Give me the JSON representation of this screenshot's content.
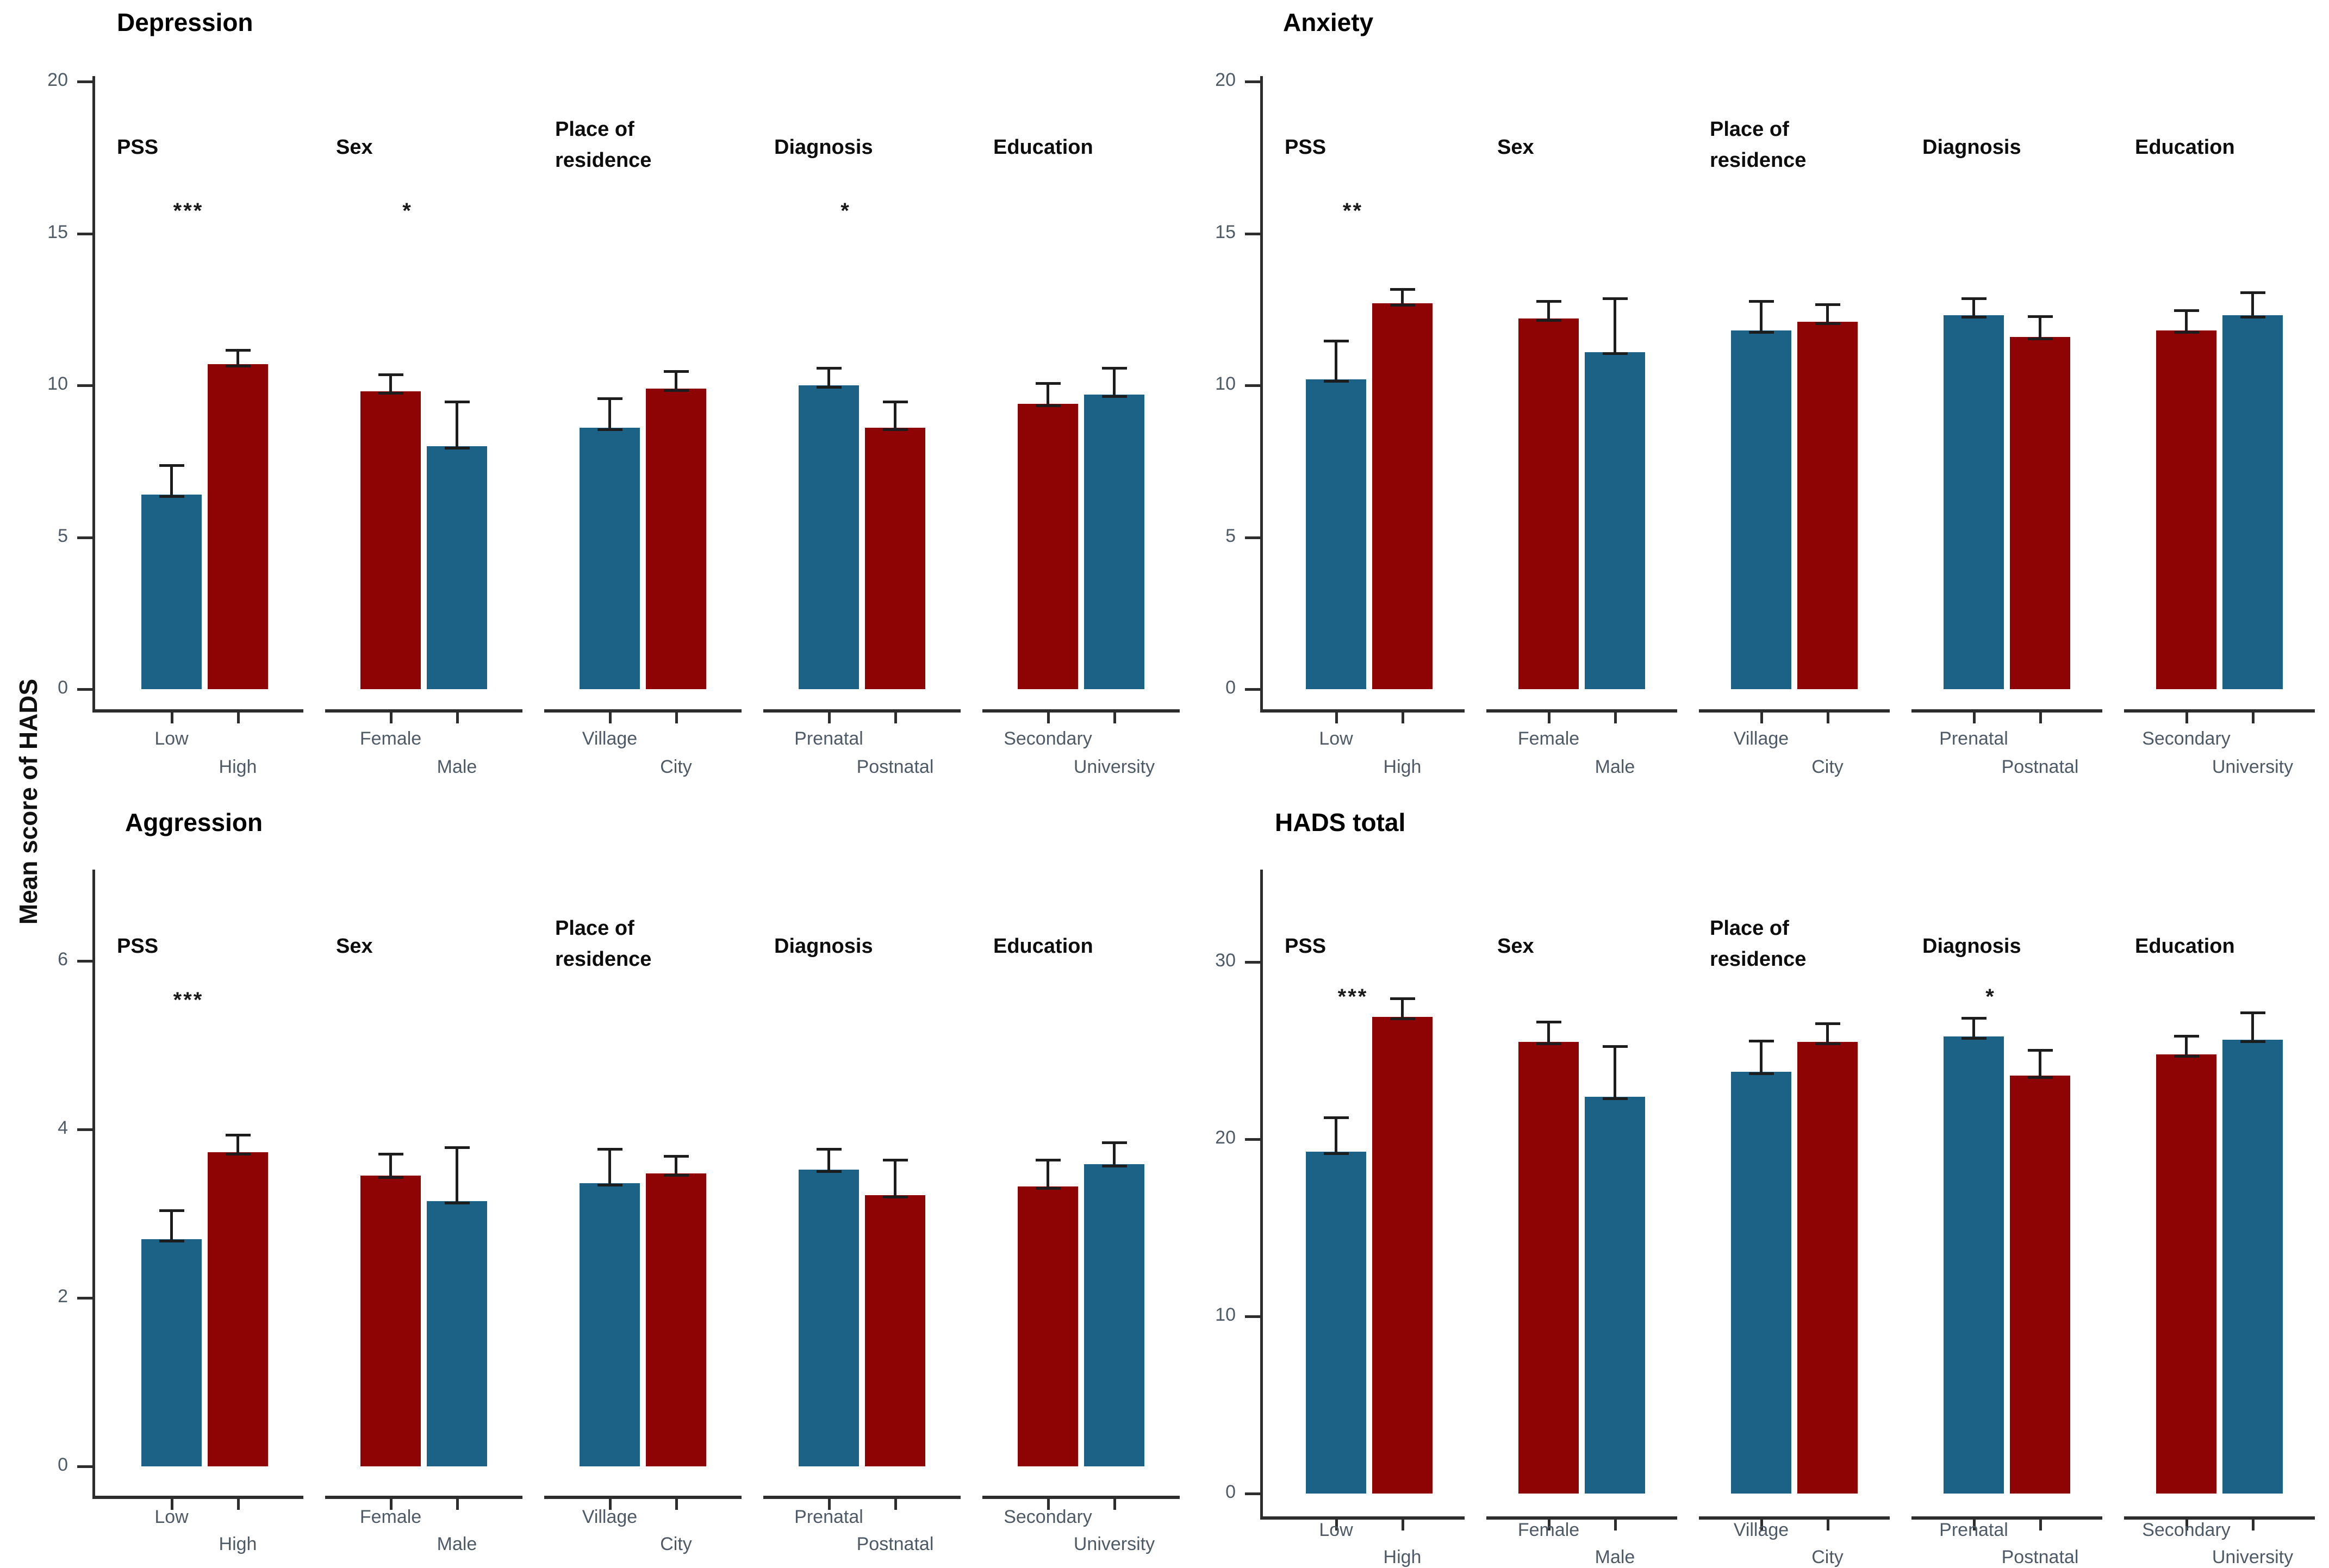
{
  "figure": {
    "y_axis_label": "Mean score of HADS"
  },
  "colors": {
    "blue": "#1B6286",
    "red": "#8E0304",
    "error_bar": "#1d1d1d",
    "axis": "#2d2d2d",
    "tick_label": "#4e5a66",
    "title": "#000000"
  },
  "chart_data": [
    {
      "type": "bar",
      "title": "Depression",
      "ylabel": "Mean score of HADS",
      "ylim": [
        0,
        20
      ],
      "yticks": [
        0,
        5,
        10,
        15,
        20
      ],
      "grid": false,
      "legend": "none",
      "groups": [
        {
          "header": "PSS",
          "sig": "***",
          "bars": [
            {
              "label": "Low",
              "color": "blue",
              "value": 6.4,
              "error_top": 7.4
            },
            {
              "label": "High",
              "color": "red",
              "value": 10.7,
              "error_top": 11.2
            }
          ]
        },
        {
          "header": "Sex",
          "sig": "*",
          "bars": [
            {
              "label": "Female",
              "color": "red",
              "value": 9.8,
              "error_top": 10.4
            },
            {
              "label": "Male",
              "color": "blue",
              "value": 8.0,
              "error_top": 9.5
            }
          ]
        },
        {
          "header": "Place of\nresidence",
          "sig": "",
          "bars": [
            {
              "label": "Village",
              "color": "blue",
              "value": 8.6,
              "error_top": 9.6
            },
            {
              "label": "City",
              "color": "red",
              "value": 9.9,
              "error_top": 10.5
            }
          ]
        },
        {
          "header": "Diagnosis",
          "sig": "*",
          "bars": [
            {
              "label": "Prenatal",
              "color": "blue",
              "value": 10.0,
              "error_top": 10.6
            },
            {
              "label": "Postnatal",
              "color": "red",
              "value": 8.6,
              "error_top": 9.5
            }
          ]
        },
        {
          "header": "Education",
          "sig": "",
          "bars": [
            {
              "label": "Secondary",
              "color": "red",
              "value": 9.4,
              "error_top": 10.1
            },
            {
              "label": "University",
              "color": "blue",
              "value": 9.7,
              "error_top": 10.6
            }
          ]
        }
      ]
    },
    {
      "type": "bar",
      "title": "Anxiety",
      "ylabel": "Mean score of HADS",
      "ylim": [
        0,
        20
      ],
      "yticks": [
        0,
        5,
        10,
        15,
        20
      ],
      "grid": false,
      "legend": "none",
      "groups": [
        {
          "header": "PSS",
          "sig": "**",
          "bars": [
            {
              "label": "Low",
              "color": "blue",
              "value": 10.2,
              "error_top": 11.5
            },
            {
              "label": "High",
              "color": "red",
              "value": 12.7,
              "error_top": 13.2
            }
          ]
        },
        {
          "header": "Sex",
          "sig": "",
          "bars": [
            {
              "label": "Female",
              "color": "red",
              "value": 12.2,
              "error_top": 12.8
            },
            {
              "label": "Male",
              "color": "blue",
              "value": 11.1,
              "error_top": 12.9
            }
          ]
        },
        {
          "header": "Place of\nresidence",
          "sig": "",
          "bars": [
            {
              "label": "Village",
              "color": "blue",
              "value": 11.8,
              "error_top": 12.8
            },
            {
              "label": "City",
              "color": "red",
              "value": 12.1,
              "error_top": 12.7
            }
          ]
        },
        {
          "header": "Diagnosis",
          "sig": "",
          "bars": [
            {
              "label": "Prenatal",
              "color": "blue",
              "value": 12.3,
              "error_top": 12.9
            },
            {
              "label": "Postnatal",
              "color": "red",
              "value": 11.6,
              "error_top": 12.3
            }
          ]
        },
        {
          "header": "Education",
          "sig": "",
          "bars": [
            {
              "label": "Secondary",
              "color": "red",
              "value": 11.8,
              "error_top": 12.5
            },
            {
              "label": "University",
              "color": "blue",
              "value": 12.3,
              "error_top": 13.1
            }
          ]
        }
      ]
    },
    {
      "type": "bar",
      "title": "Aggression",
      "ylabel": "Mean score of HADS",
      "ylim": [
        0,
        7
      ],
      "yticks": [
        0,
        2,
        4,
        6
      ],
      "grid": false,
      "legend": "none",
      "groups": [
        {
          "header": "PSS",
          "sig": "***",
          "bars": [
            {
              "label": "Low",
              "color": "blue",
              "value": 2.7,
              "error_top": 3.05
            },
            {
              "label": "High",
              "color": "red",
              "value": 3.73,
              "error_top": 3.95
            }
          ]
        },
        {
          "header": "Sex",
          "sig": "",
          "bars": [
            {
              "label": "Female",
              "color": "red",
              "value": 3.45,
              "error_top": 3.72
            },
            {
              "label": "Male",
              "color": "blue",
              "value": 3.15,
              "error_top": 3.8
            }
          ]
        },
        {
          "header": "Place of\nresidence",
          "sig": "",
          "bars": [
            {
              "label": "Village",
              "color": "blue",
              "value": 3.36,
              "error_top": 3.78
            },
            {
              "label": "City",
              "color": "red",
              "value": 3.48,
              "error_top": 3.7
            }
          ]
        },
        {
          "header": "Diagnosis",
          "sig": "",
          "bars": [
            {
              "label": "Prenatal",
              "color": "blue",
              "value": 3.52,
              "error_top": 3.78
            },
            {
              "label": "Postnatal",
              "color": "red",
              "value": 3.22,
              "error_top": 3.65
            }
          ]
        },
        {
          "header": "Education",
          "sig": "",
          "bars": [
            {
              "label": "Secondary",
              "color": "red",
              "value": 3.32,
              "error_top": 3.65
            },
            {
              "label": "University",
              "color": "blue",
              "value": 3.59,
              "error_top": 3.86
            }
          ]
        }
      ]
    },
    {
      "type": "bar",
      "title": "HADS total",
      "ylabel": "Mean score of HADS",
      "ylim": [
        0,
        33
      ],
      "yticks": [
        0,
        10,
        20,
        30
      ],
      "grid": false,
      "legend": "none",
      "groups": [
        {
          "header": "PSS",
          "sig": "***",
          "bars": [
            {
              "label": "Low",
              "color": "blue",
              "value": 19.3,
              "error_top": 21.3
            },
            {
              "label": "High",
              "color": "red",
              "value": 26.9,
              "error_top": 28.0
            }
          ]
        },
        {
          "header": "Sex",
          "sig": "",
          "bars": [
            {
              "label": "Female",
              "color": "red",
              "value": 25.5,
              "error_top": 26.7
            },
            {
              "label": "Male",
              "color": "blue",
              "value": 22.4,
              "error_top": 25.3
            }
          ]
        },
        {
          "header": "Place of\nresidence",
          "sig": "",
          "bars": [
            {
              "label": "Village",
              "color": "blue",
              "value": 23.8,
              "error_top": 25.6
            },
            {
              "label": "City",
              "color": "red",
              "value": 25.5,
              "error_top": 26.6
            }
          ]
        },
        {
          "header": "Diagnosis",
          "sig": "*",
          "bars": [
            {
              "label": "Prenatal",
              "color": "blue",
              "value": 25.8,
              "error_top": 26.9
            },
            {
              "label": "Postnatal",
              "color": "red",
              "value": 23.6,
              "error_top": 25.1
            }
          ]
        },
        {
          "header": "Education",
          "sig": "",
          "bars": [
            {
              "label": "Secondary",
              "color": "red",
              "value": 24.8,
              "error_top": 25.9
            },
            {
              "label": "University",
              "color": "blue",
              "value": 25.6,
              "error_top": 27.2
            }
          ]
        }
      ]
    }
  ]
}
